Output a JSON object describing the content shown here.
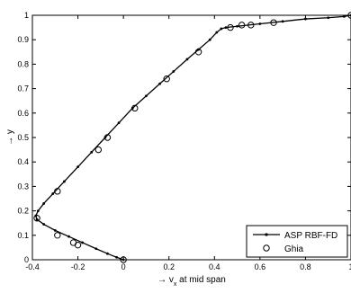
{
  "chart_data": {
    "type": "line",
    "title": "",
    "xlabel": "→ v",
    "xlabel_subscript": "x",
    "xlabel_suffix": " at mid span",
    "ylabel": "→ y",
    "xlim": [
      -0.4,
      1
    ],
    "ylim": [
      0,
      1
    ],
    "xticks": [
      -0.4,
      -0.2,
      0,
      0.2,
      0.4,
      0.6,
      0.8,
      1
    ],
    "yticks": [
      0,
      0.1,
      0.2,
      0.3,
      0.4,
      0.5,
      0.6,
      0.7,
      0.8,
      0.9,
      1
    ],
    "xtick_labels": [
      "-0.4",
      "-0.2",
      "0",
      "0.2",
      "0.4",
      "0.6",
      "0.8",
      "1"
    ],
    "ytick_labels": [
      "0",
      "0.1",
      "0.2",
      "0.3",
      "0.4",
      "0.5",
      "0.6",
      "0.7",
      "0.8",
      "0.9",
      "1"
    ],
    "grid": false,
    "legend_position": "bottom-right",
    "series": [
      {
        "name": "ASP RBF-FD",
        "style": "line-with-dots",
        "color": "#000000",
        "x": [
          0.0,
          -0.03,
          -0.07,
          -0.12,
          -0.18,
          -0.24,
          -0.3,
          -0.35,
          -0.38,
          -0.385,
          -0.375,
          -0.35,
          -0.31,
          -0.26,
          -0.2,
          -0.14,
          -0.08,
          -0.02,
          0.04,
          0.1,
          0.16,
          0.22,
          0.28,
          0.33,
          0.38,
          0.41,
          0.43,
          0.45,
          0.5,
          0.6,
          0.7,
          0.8,
          0.9,
          0.97,
          1.0
        ],
        "y": [
          0.0,
          0.01,
          0.025,
          0.045,
          0.07,
          0.095,
          0.12,
          0.145,
          0.165,
          0.18,
          0.2,
          0.23,
          0.27,
          0.32,
          0.38,
          0.44,
          0.5,
          0.56,
          0.62,
          0.67,
          0.72,
          0.77,
          0.82,
          0.86,
          0.9,
          0.93,
          0.945,
          0.95,
          0.955,
          0.965,
          0.975,
          0.985,
          0.99,
          0.995,
          1.0
        ]
      },
      {
        "name": "Ghia",
        "style": "circles",
        "color": "#000000",
        "x": [
          0.0,
          -0.2,
          -0.22,
          -0.29,
          -0.38,
          -0.29,
          -0.07,
          -0.11,
          0.05,
          0.19,
          0.33,
          0.47,
          0.52,
          0.56,
          0.66,
          1.0
        ],
        "y": [
          0.0,
          0.06,
          0.07,
          0.1,
          0.17,
          0.28,
          0.5,
          0.45,
          0.62,
          0.74,
          0.85,
          0.95,
          0.96,
          0.96,
          0.97,
          1.0
        ]
      }
    ]
  }
}
